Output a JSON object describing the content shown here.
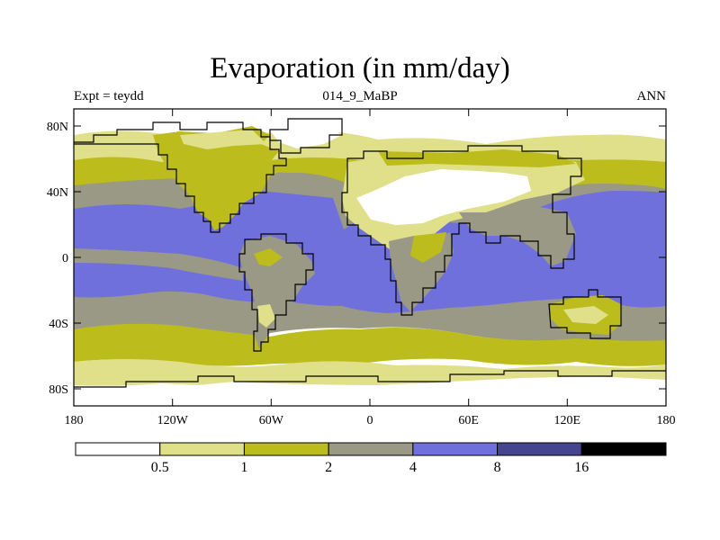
{
  "header": {
    "title": "Evaporation (in mm/day)",
    "left_label": "Expt = teydd",
    "center_label": "014_9_MaBP",
    "right_label": "ANN"
  },
  "map": {
    "lat_labels": [
      "80N",
      "40N",
      "0",
      "40S",
      "80S"
    ],
    "lon_labels": [
      "180",
      "120W",
      "60W",
      "0",
      "60E",
      "120E",
      "180"
    ]
  },
  "colorbar": {
    "colors": [
      "#ffffff",
      "#e0e08a",
      "#bcbc1c",
      "#999985",
      "#7070dd",
      "#45458f",
      "#000000"
    ],
    "labels": [
      "0.5",
      "1",
      "2",
      "4",
      "8",
      "16"
    ]
  }
}
